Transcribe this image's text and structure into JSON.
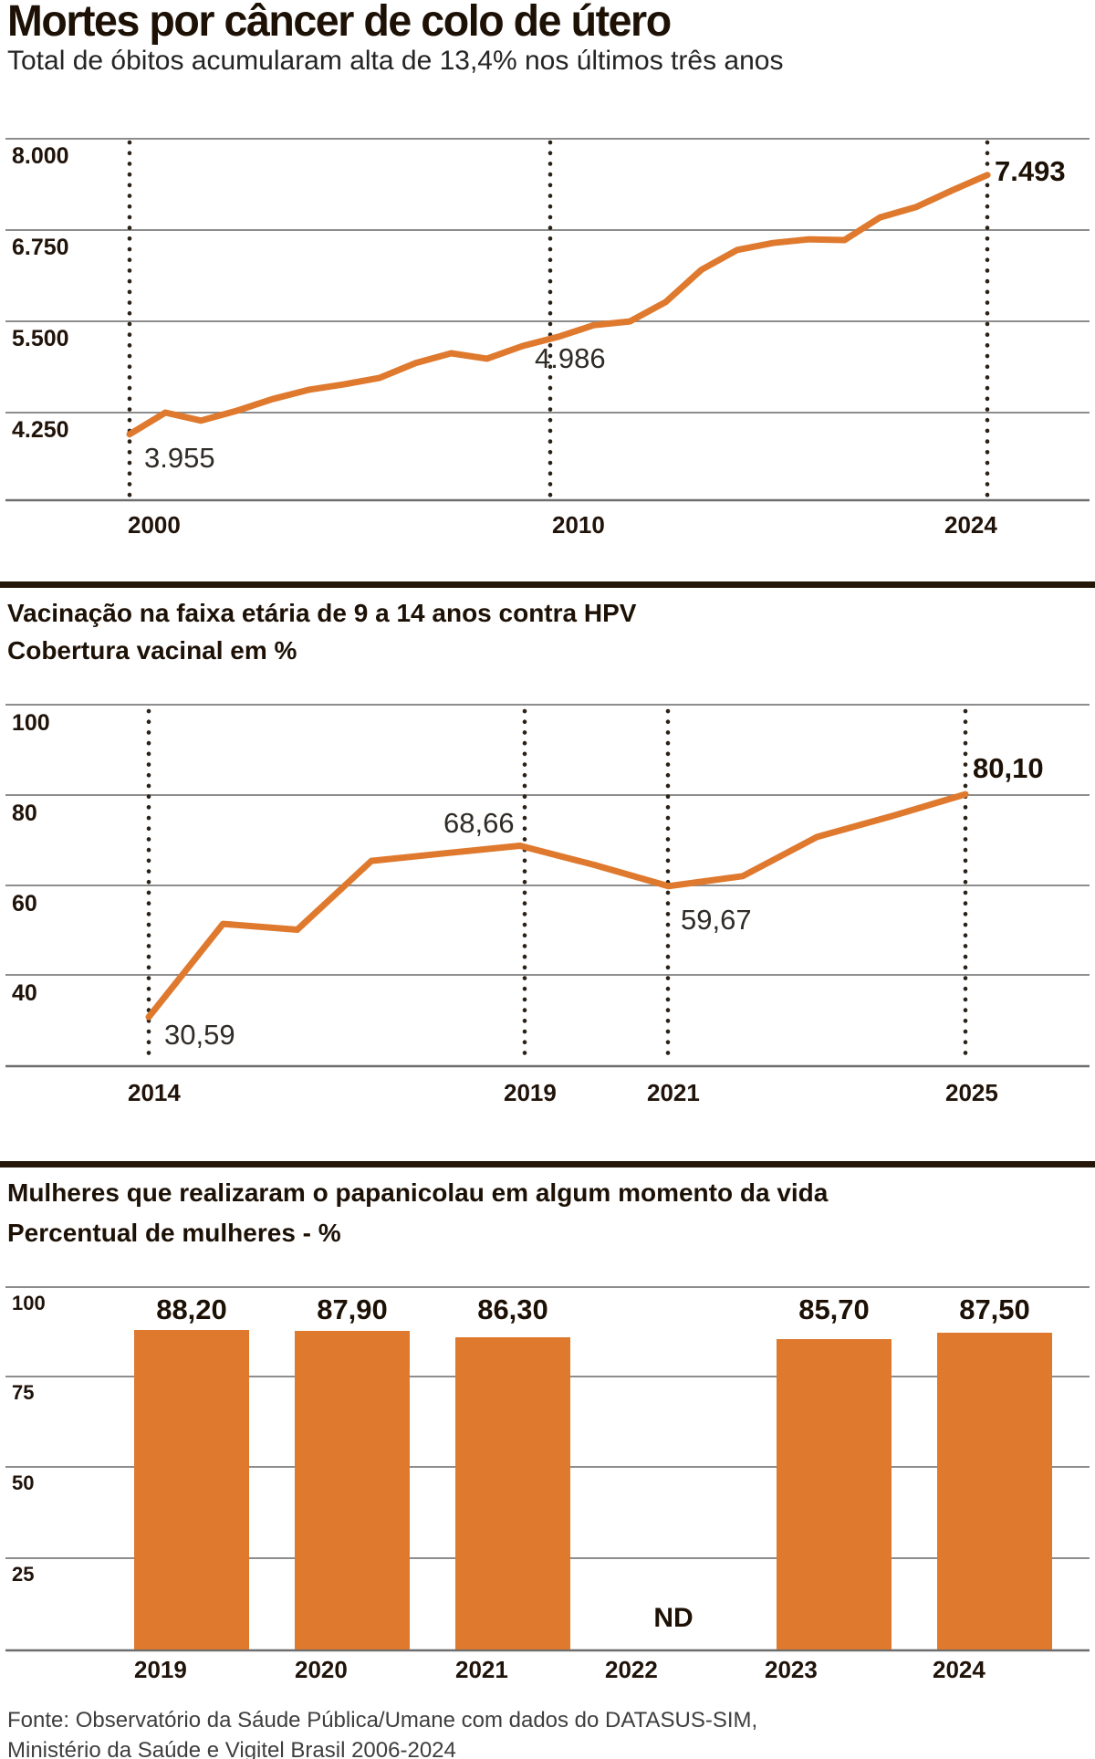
{
  "page": {
    "background": "#ffffff",
    "accent_color": "#DF792E",
    "ink_color": "#1d1106"
  },
  "header": {
    "title": "Mortes por câncer de colo de útero",
    "subtitle": "Total de óbitos acumularam alta de 13,4% nos últimos três anos"
  },
  "sections": [
    {
      "title_line1": "Vacinação na faixa etária de 9 a 14 anos contra HPV",
      "title_line2": "Cobertura vacinal em %"
    },
    {
      "title_line1": "Mulheres que realizaram o papanicolau em algum momento da vida",
      "title_line2": "Percentual de mulheres - %"
    }
  ],
  "source": {
    "line1": "Fonte: Observatório da Sáude Pública/Umane com dados do DATASUS-SIM,",
    "line2": "Ministério da Saúde e Vigitel Brasil 2006-2024"
  },
  "chart_data": [
    {
      "type": "line",
      "title": "Mortes por câncer de colo de útero",
      "ylabel": "Total de óbitos",
      "x": [
        2000,
        2001,
        2002,
        2003,
        2004,
        2005,
        2006,
        2007,
        2008,
        2009,
        2010,
        2011,
        2012,
        2013,
        2014,
        2015,
        2016,
        2017,
        2018,
        2019,
        2020,
        2021,
        2022,
        2023,
        2024
      ],
      "values": [
        3955,
        4250,
        4140,
        4275,
        4435,
        4560,
        4635,
        4725,
        4925,
        5060,
        4986,
        5160,
        5285,
        5445,
        5495,
        5760,
        6200,
        6470,
        6565,
        6615,
        6605,
        6915,
        7055,
        7280,
        7493
      ],
      "ylim": [
        3050,
        8150
      ],
      "yticks": {
        "values": [
          8000,
          6750,
          5500,
          4250
        ],
        "labels": [
          "8.000",
          "6.750",
          "5.500",
          "4.250"
        ]
      },
      "xticks": {
        "values": [
          2000,
          2010,
          2024
        ],
        "labels": [
          "2000",
          "2010",
          "2024"
        ]
      },
      "point_labels": [
        {
          "x": 2000,
          "value": 3955,
          "text": "3.955",
          "bold": false
        },
        {
          "x": 2010,
          "value": 4986,
          "text": "4.986",
          "bold": false
        },
        {
          "x": 2024,
          "value": 7493,
          "text": "7.493",
          "bold": true
        }
      ],
      "grid": "horizontal-solid, vertical-dotted at labeled years",
      "legend": null,
      "line_color": "#DF792E"
    },
    {
      "type": "line",
      "title": "Vacinação na faixa etária de 9 a 14 anos contra HPV",
      "ylabel": "Cobertura vacinal em %",
      "x": [
        2014,
        2015,
        2016,
        2017,
        2018,
        2019,
        2020,
        2021,
        2022,
        2023,
        2024,
        2025
      ],
      "values": [
        30.59,
        51.3,
        50.0,
        65.3,
        67.0,
        68.66,
        64.4,
        59.67,
        61.9,
        70.6,
        75.2,
        80.1
      ],
      "ylim": [
        20,
        103
      ],
      "yticks": {
        "values": [
          100,
          80,
          60,
          40
        ],
        "labels": [
          "100",
          "80",
          "60",
          "40"
        ]
      },
      "xticks": {
        "values": [
          2014,
          2019,
          2021,
          2025
        ],
        "labels": [
          "2014",
          "2019",
          "2021",
          "2025"
        ]
      },
      "point_labels": [
        {
          "x": 2014,
          "value": 30.59,
          "text": "30,59",
          "bold": false
        },
        {
          "x": 2019,
          "value": 68.66,
          "text": "68,66",
          "bold": false
        },
        {
          "x": 2021,
          "value": 59.67,
          "text": "59,67",
          "bold": false
        },
        {
          "x": 2025,
          "value": 80.1,
          "text": "80,10",
          "bold": true
        }
      ],
      "grid": "horizontal-solid, vertical-dotted at labeled years",
      "legend": null,
      "line_color": "#DF792E"
    },
    {
      "type": "bar",
      "title": "Mulheres que realizaram o papanicolau em algum momento da vida",
      "ylabel": "Percentual de mulheres - %",
      "categories": [
        "2019",
        "2020",
        "2021",
        "2022",
        "2023",
        "2024"
      ],
      "values": [
        88.2,
        87.9,
        86.3,
        null,
        85.7,
        87.5
      ],
      "bar_labels": [
        "88,20",
        "87,90",
        "86,30",
        "ND",
        "85,70",
        "87,50"
      ],
      "no_data_label": "ND",
      "ylim": [
        0,
        100
      ],
      "yticks": {
        "values": [
          100,
          75,
          50,
          25
        ],
        "labels": [
          "100",
          "75",
          "50",
          "25"
        ]
      },
      "grid": "horizontal-solid",
      "legend": null,
      "bar_color": "#DF792E"
    }
  ]
}
